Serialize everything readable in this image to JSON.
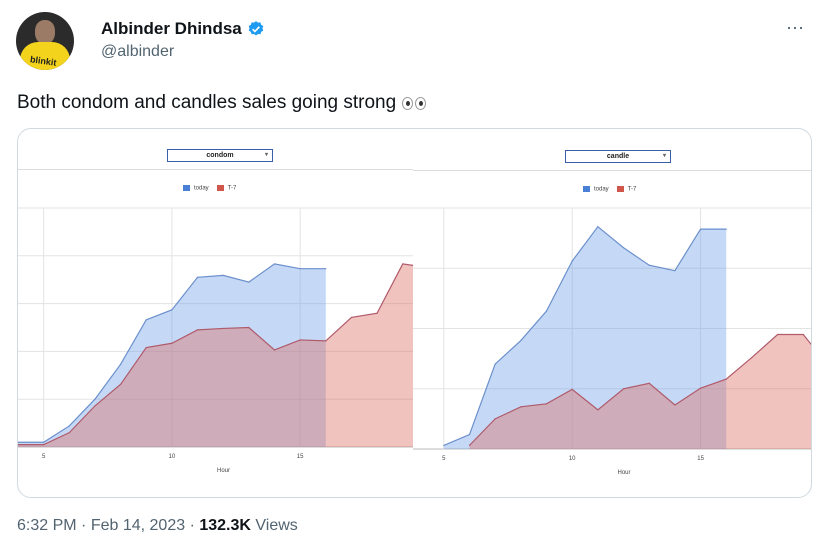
{
  "author": {
    "name": "Albinder Dhindsa",
    "handle": "@albinder",
    "verified": true,
    "avatar_logo_text": "blinkit"
  },
  "more_icon": "⋯",
  "tweet": {
    "text": "Both condom and candles sales going strong",
    "emoji": "eyes"
  },
  "footer": {
    "time": "6:32 PM",
    "date": "Feb 14, 2023",
    "views_count": "132.3K",
    "views_label": "Views",
    "separator": "·"
  },
  "colors": {
    "today": "#4a7fd6",
    "t7": "#d0554a",
    "verified": "#1d9bf0"
  },
  "chart_data": [
    {
      "type": "area",
      "selector_value": "condom",
      "legend": [
        "today",
        "T-7"
      ],
      "xlabel": "Hour",
      "x_ticks": [
        5,
        10,
        15
      ],
      "xlim": [
        4,
        19.4
      ],
      "ylim": [
        0,
        5
      ],
      "y_gridlines": [
        1,
        2,
        3,
        4,
        5
      ],
      "series": [
        {
          "name": "today",
          "x": [
            4,
            5,
            6,
            7,
            8,
            9,
            10,
            11,
            12,
            13,
            14,
            15,
            16
          ],
          "values": [
            0.1,
            0.1,
            0.44,
            1.0,
            1.73,
            2.66,
            2.87,
            3.55,
            3.59,
            3.45,
            3.83,
            3.73,
            3.73
          ]
        },
        {
          "name": "T-7",
          "x": [
            4,
            5,
            6,
            7,
            8,
            9,
            10,
            11,
            12,
            13,
            14,
            15,
            16,
            17,
            18,
            19,
            19.4
          ],
          "values": [
            0.05,
            0.05,
            0.3,
            0.86,
            1.31,
            2.08,
            2.17,
            2.45,
            2.48,
            2.5,
            2.03,
            2.24,
            2.22,
            2.71,
            2.8,
            3.83,
            3.8
          ]
        }
      ]
    },
    {
      "type": "area",
      "selector_value": "candle",
      "legend": [
        "today",
        "T-7"
      ],
      "xlabel": "Hour",
      "x_ticks": [
        5,
        10,
        15
      ],
      "xlim": [
        3.8,
        19.3
      ],
      "ylim": [
        0,
        4
      ],
      "y_gridlines": [
        1,
        2,
        3,
        4
      ],
      "series": [
        {
          "name": "today",
          "x": [
            5,
            6,
            7,
            8,
            9,
            10,
            11,
            12,
            13,
            14,
            15,
            16
          ],
          "values": [
            0.06,
            0.24,
            1.41,
            1.8,
            2.29,
            3.12,
            3.69,
            3.34,
            3.05,
            2.96,
            3.65,
            3.65
          ]
        },
        {
          "name": "T-7",
          "x": [
            6,
            7,
            8,
            9,
            10,
            11,
            12,
            13,
            14,
            15,
            16,
            17,
            18,
            19,
            19.3
          ],
          "values": [
            0.06,
            0.5,
            0.7,
            0.75,
            0.99,
            0.65,
            1.0,
            1.09,
            0.73,
            1.01,
            1.16,
            1.52,
            1.9,
            1.9,
            1.74
          ]
        }
      ]
    }
  ]
}
